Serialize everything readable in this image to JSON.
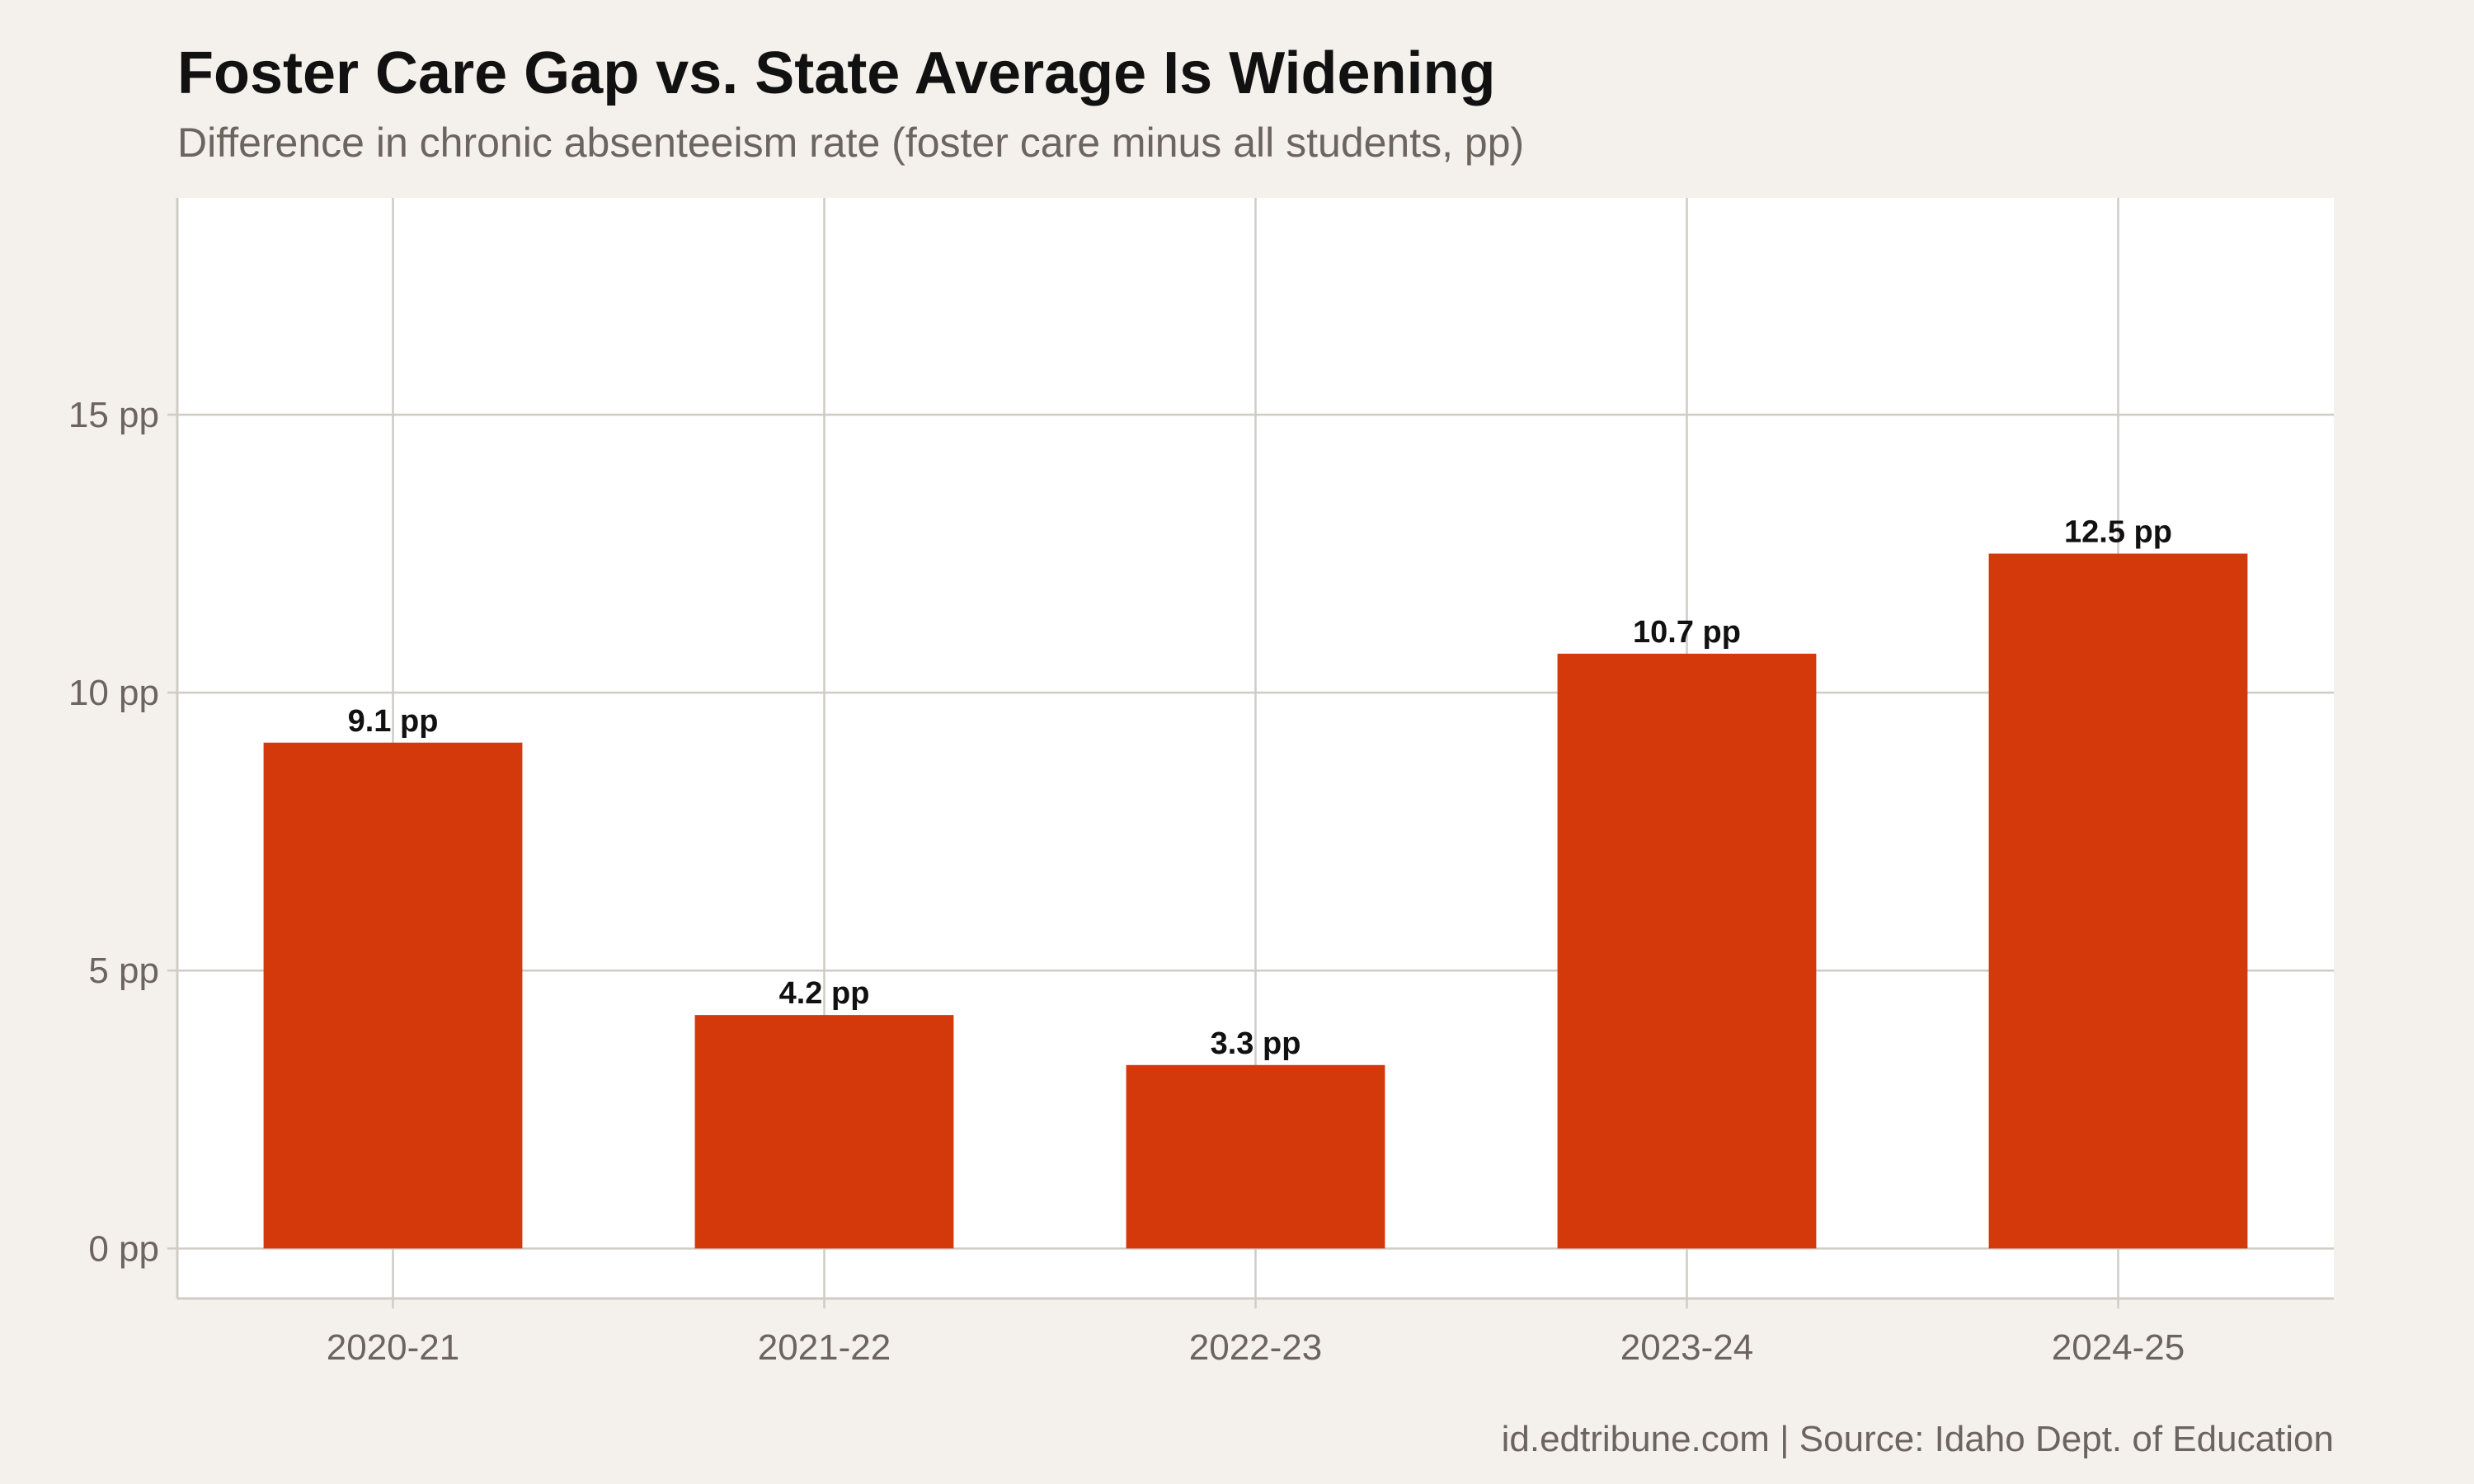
{
  "chart_data": {
    "type": "bar",
    "title": "Foster Care Gap vs. State Average Is Widening",
    "subtitle": "Difference in chronic absenteeism rate (foster care minus all students, pp)",
    "caption": "id.edtribune.com | Source: Idaho Dept. of Education",
    "xlabel": "",
    "ylabel": "",
    "categories": [
      "2020-21",
      "2021-22",
      "2022-23",
      "2023-24",
      "2024-25"
    ],
    "values": [
      9.1,
      4.2,
      3.3,
      10.7,
      12.5
    ],
    "data_labels": [
      "9.1 pp",
      "4.2 pp",
      "3.3 pp",
      "10.7 pp",
      "12.5 pp"
    ],
    "y_ticks": [
      0,
      5,
      10,
      15
    ],
    "y_tick_labels": [
      "0 pp",
      "5 pp",
      "10 pp",
      "15 pp"
    ],
    "ylim": [
      -0.9,
      18.9
    ],
    "grid": true,
    "legend": "none",
    "colors": {
      "bar": "#d4390c",
      "background": "#f4f1ec",
      "panel": "#ffffff",
      "grid": "#cfcbc5",
      "axis_text": "#6b6560",
      "title": "#111111"
    }
  }
}
